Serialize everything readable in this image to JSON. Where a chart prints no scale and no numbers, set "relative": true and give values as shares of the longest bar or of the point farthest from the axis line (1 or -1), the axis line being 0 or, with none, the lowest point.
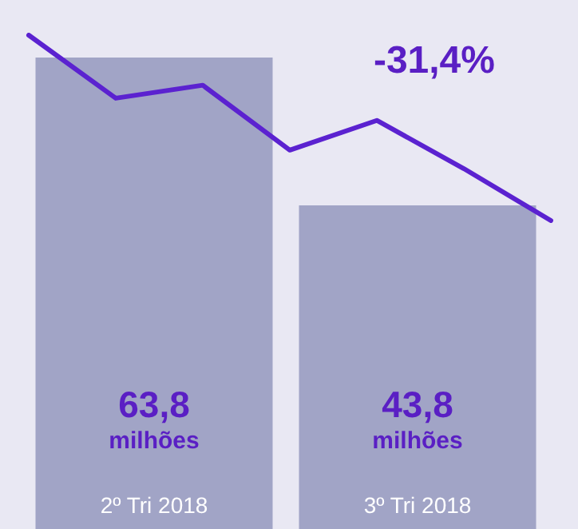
{
  "chart_data": [
    {
      "type": "bar",
      "categories": [
        "2º Tri 2018",
        "3º Tri 2018"
      ],
      "color": "#a1a4c6",
      "values": [
        63.8,
        43.8
      ],
      "value_labels": [
        "63,8 milhões",
        "43,8 milhões"
      ],
      "annotations": [
        "-31,4%"
      ]
    },
    {
      "type": "line",
      "relative": true,
      "categories": [
        null,
        null,
        null,
        null,
        null,
        null,
        null
      ],
      "color": "#5b22d0",
      "values": [
        1,
        0.66,
        0.73,
        0.38,
        0.54,
        0.28,
        0
      ]
    }
  ]
}
